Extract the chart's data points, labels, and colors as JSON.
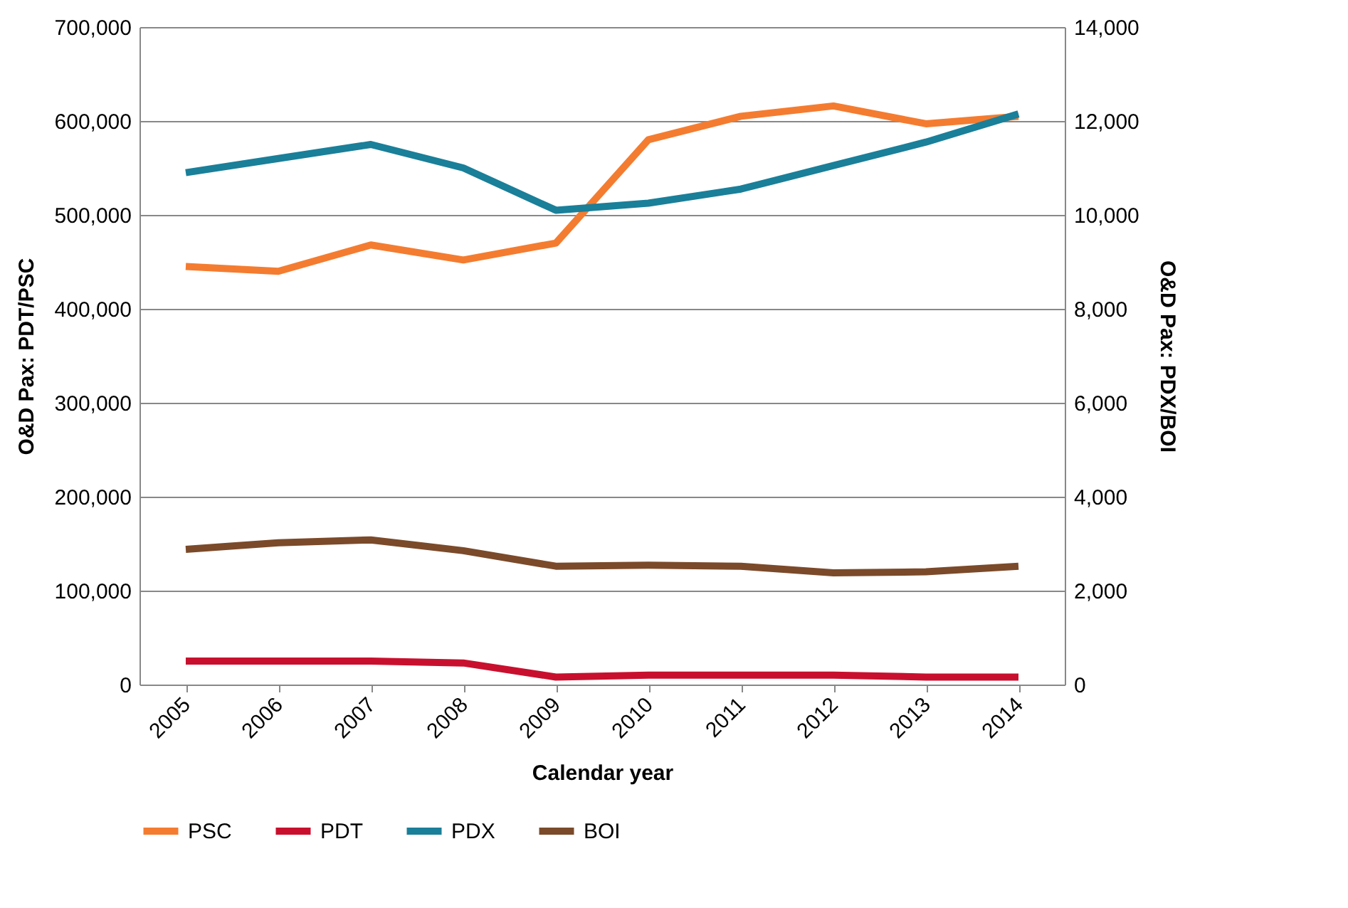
{
  "chart_data": {
    "type": "line",
    "xlabel": "Calendar year",
    "ylabel": "O&D Pax: PDT/PSC",
    "y2label": "O&D Pax: PDX/BOI",
    "categories": [
      "2005",
      "2006",
      "2007",
      "2008",
      "2009",
      "2010",
      "2011",
      "2012",
      "2013",
      "2014"
    ],
    "series": [
      {
        "name": "PSC",
        "color": "#f47c30",
        "values": [
          445000,
          440000,
          468000,
          452000,
          470000,
          580000,
          605000,
          616000,
          597000,
          605000
        ]
      },
      {
        "name": "PDT",
        "color": "#c8102e",
        "values": [
          25000,
          25000,
          25000,
          23000,
          8000,
          10000,
          10000,
          10000,
          8000,
          8000
        ]
      },
      {
        "name": "PDX",
        "color": "#1a7f99",
        "axis": "y2",
        "values": [
          10900,
          11200,
          11500,
          11000,
          10100,
          10250,
          10550,
          11050,
          11550,
          12150
        ]
      },
      {
        "name": "BOI",
        "color": "#7b4a2a",
        "axis": "y2",
        "values": [
          2880,
          3020,
          3080,
          2850,
          2520,
          2540,
          2520,
          2380,
          2400,
          2520
        ]
      }
    ],
    "ylim": [
      0,
      700000
    ],
    "yticks": [
      0,
      {
        "value": 100000,
        "label": "100,000"
      },
      {
        "value": 200000,
        "label": "200,000"
      },
      {
        "value": 300000,
        "label": "300,000"
      },
      {
        "value": 400000,
        "label": "400,000"
      },
      {
        "value": 500000,
        "label": "500,000"
      },
      {
        "value": 600000,
        "label": "600,000"
      },
      {
        "value": 700000,
        "label": "700,000"
      }
    ],
    "y2lim": [
      0,
      14000
    ],
    "y2ticks": [
      0,
      {
        "value": 2000,
        "label": "2,000"
      },
      {
        "value": 4000,
        "label": "4,000"
      },
      {
        "value": 6000,
        "label": "6,000"
      },
      {
        "value": 8000,
        "label": "8,000"
      },
      {
        "value": 10000,
        "label": "10,000"
      },
      {
        "value": 12000,
        "label": "12,000"
      },
      {
        "value": 14000,
        "label": "14,000"
      }
    ],
    "grid": "y",
    "legend": "bottom",
    "marker": "none",
    "line_style": "solid"
  }
}
